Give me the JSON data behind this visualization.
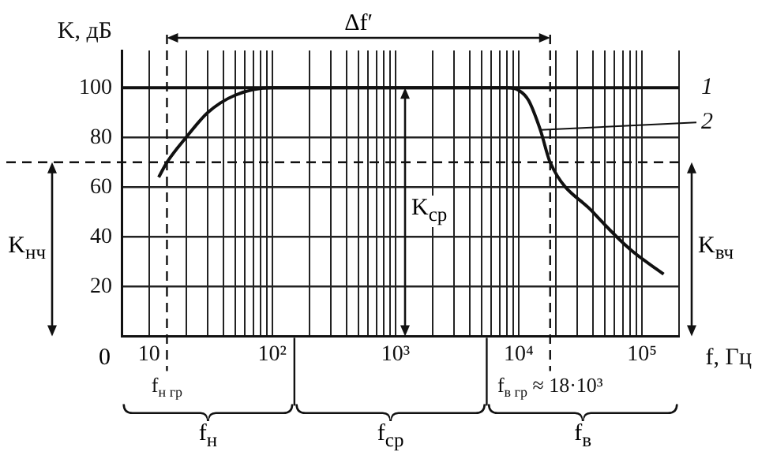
{
  "chart_data": {
    "type": "line",
    "xlabel": "f, Гц",
    "ylabel": "K, дБ",
    "log": "x",
    "grid": true,
    "legend": false,
    "marker": "none",
    "line_style": "solid",
    "xlim": [
      6,
      200000
    ],
    "ylim": [
      0,
      115
    ],
    "xticks": [
      10,
      {
        "value": 20,
        "label": null
      },
      {
        "value": 30,
        "label": null
      },
      {
        "value": 40,
        "label": null
      },
      {
        "value": 50,
        "label": null
      },
      {
        "value": 60,
        "label": null
      },
      {
        "value": 70,
        "label": null
      },
      {
        "value": 80,
        "label": null
      },
      {
        "value": 90,
        "label": null
      },
      {
        "value": 100,
        "label": "10²"
      },
      {
        "value": 200,
        "label": null
      },
      {
        "value": 300,
        "label": null
      },
      {
        "value": 400,
        "label": null
      },
      {
        "value": 500,
        "label": null
      },
      {
        "value": 600,
        "label": null
      },
      {
        "value": 700,
        "label": null
      },
      {
        "value": 800,
        "label": null
      },
      {
        "value": 900,
        "label": null
      },
      {
        "value": 1000,
        "label": "10³"
      },
      {
        "value": 2000,
        "label": null
      },
      {
        "value": 3000,
        "label": null
      },
      {
        "value": 4000,
        "label": null
      },
      {
        "value": 5000,
        "label": null
      },
      {
        "value": 6000,
        "label": null
      },
      {
        "value": 7000,
        "label": null
      },
      {
        "value": 8000,
        "label": null
      },
      {
        "value": 9000,
        "label": null
      },
      {
        "value": 10000,
        "label": "10⁴"
      },
      {
        "value": 20000,
        "label": null
      },
      {
        "value": 30000,
        "label": null
      },
      {
        "value": 40000,
        "label": null
      },
      {
        "value": 50000,
        "label": null
      },
      {
        "value": 60000,
        "label": null
      },
      {
        "value": 70000,
        "label": null
      },
      {
        "value": 80000,
        "label": null
      },
      {
        "value": 90000,
        "label": null
      },
      {
        "value": 100000,
        "label": "10⁵"
      },
      {
        "value": 200000,
        "label": null
      }
    ],
    "yticks": [
      20,
      40,
      60,
      80,
      100
    ],
    "series": [
      {
        "name": "1",
        "color": "#111111",
        "x": [
          6,
          200000
        ],
        "values": [
          100,
          100
        ]
      },
      {
        "name": "2",
        "color": "#111111",
        "x": [
          12,
          14,
          20,
          30,
          50,
          100,
          8000,
          10000,
          12000,
          15000,
          18000,
          40000,
          80000,
          150000
        ],
        "values": [
          64,
          70,
          80,
          90,
          97,
          100,
          100,
          99,
          95,
          83,
          70,
          50,
          35,
          25
        ]
      }
    ],
    "ref_lines": [
      {
        "axis": "y",
        "value": 70,
        "label": null,
        "line_style": "dashed"
      },
      {
        "axis": "x",
        "value": 14,
        "label": "f$_{н гр}$",
        "line_style": "dashed"
      },
      {
        "axis": "x",
        "value": 18000,
        "label": "f$_{в гр}$ ≈ 18·10³",
        "line_style": "dashed"
      }
    ],
    "annotations": [
      "0",
      "Δf′",
      "f$_{н}$",
      "f$_{ср}$",
      "f$_{в}$",
      "K$_{нч}$",
      "K$_{ср}$",
      "K$_{вч}$"
    ]
  }
}
